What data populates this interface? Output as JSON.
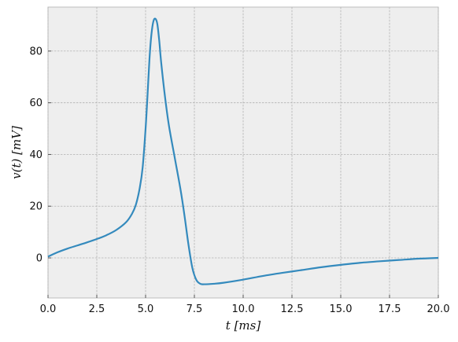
{
  "chart_data": {
    "type": "line",
    "title": "",
    "xlabel": "t [ms]",
    "ylabel": "v(t) [mV]",
    "xlim": [
      0.0,
      20.0
    ],
    "ylim": [
      -15.5,
      97
    ],
    "grid": true,
    "x_ticks": [
      0.0,
      2.5,
      5.0,
      7.5,
      10.0,
      12.5,
      15.0,
      17.5,
      20.0
    ],
    "x_tick_labels": [
      "0.0",
      "2.5",
      "5.0",
      "7.5",
      "10.0",
      "12.5",
      "15.0",
      "17.5",
      "20.0"
    ],
    "y_ticks": [
      0,
      20,
      40,
      60,
      80
    ],
    "y_tick_labels": [
      "0",
      "20",
      "40",
      "60",
      "80"
    ],
    "series": [
      {
        "color": "#348abd",
        "x": [
          0.0,
          0.5,
          1.0,
          1.5,
          2.0,
          2.5,
          3.0,
          3.5,
          4.0,
          4.3,
          4.5,
          4.7,
          4.85,
          5.0,
          5.1,
          5.2,
          5.3,
          5.4,
          5.5,
          5.6,
          5.7,
          5.8,
          6.0,
          6.2,
          6.5,
          6.8,
          7.0,
          7.2,
          7.4,
          7.6,
          7.8,
          8.0,
          8.5,
          9.0,
          10.0,
          11.0,
          12.0,
          13.0,
          14.0,
          15.0,
          16.0,
          17.0,
          18.0,
          19.0,
          20.0
        ],
        "y": [
          0.5,
          2.2,
          3.6,
          4.8,
          6.0,
          7.3,
          8.8,
          10.8,
          13.8,
          17.0,
          20.5,
          27.0,
          35.0,
          50.0,
          63.0,
          77.0,
          86.5,
          91.5,
          92.5,
          90.5,
          84.0,
          75.5,
          62.0,
          51.0,
          38.5,
          26.0,
          16.0,
          5.0,
          -4.0,
          -8.5,
          -10.0,
          -10.2,
          -10.0,
          -9.6,
          -8.4,
          -7.0,
          -5.8,
          -4.7,
          -3.6,
          -2.7,
          -1.9,
          -1.3,
          -0.8,
          -0.3,
          0.0
        ]
      }
    ]
  }
}
